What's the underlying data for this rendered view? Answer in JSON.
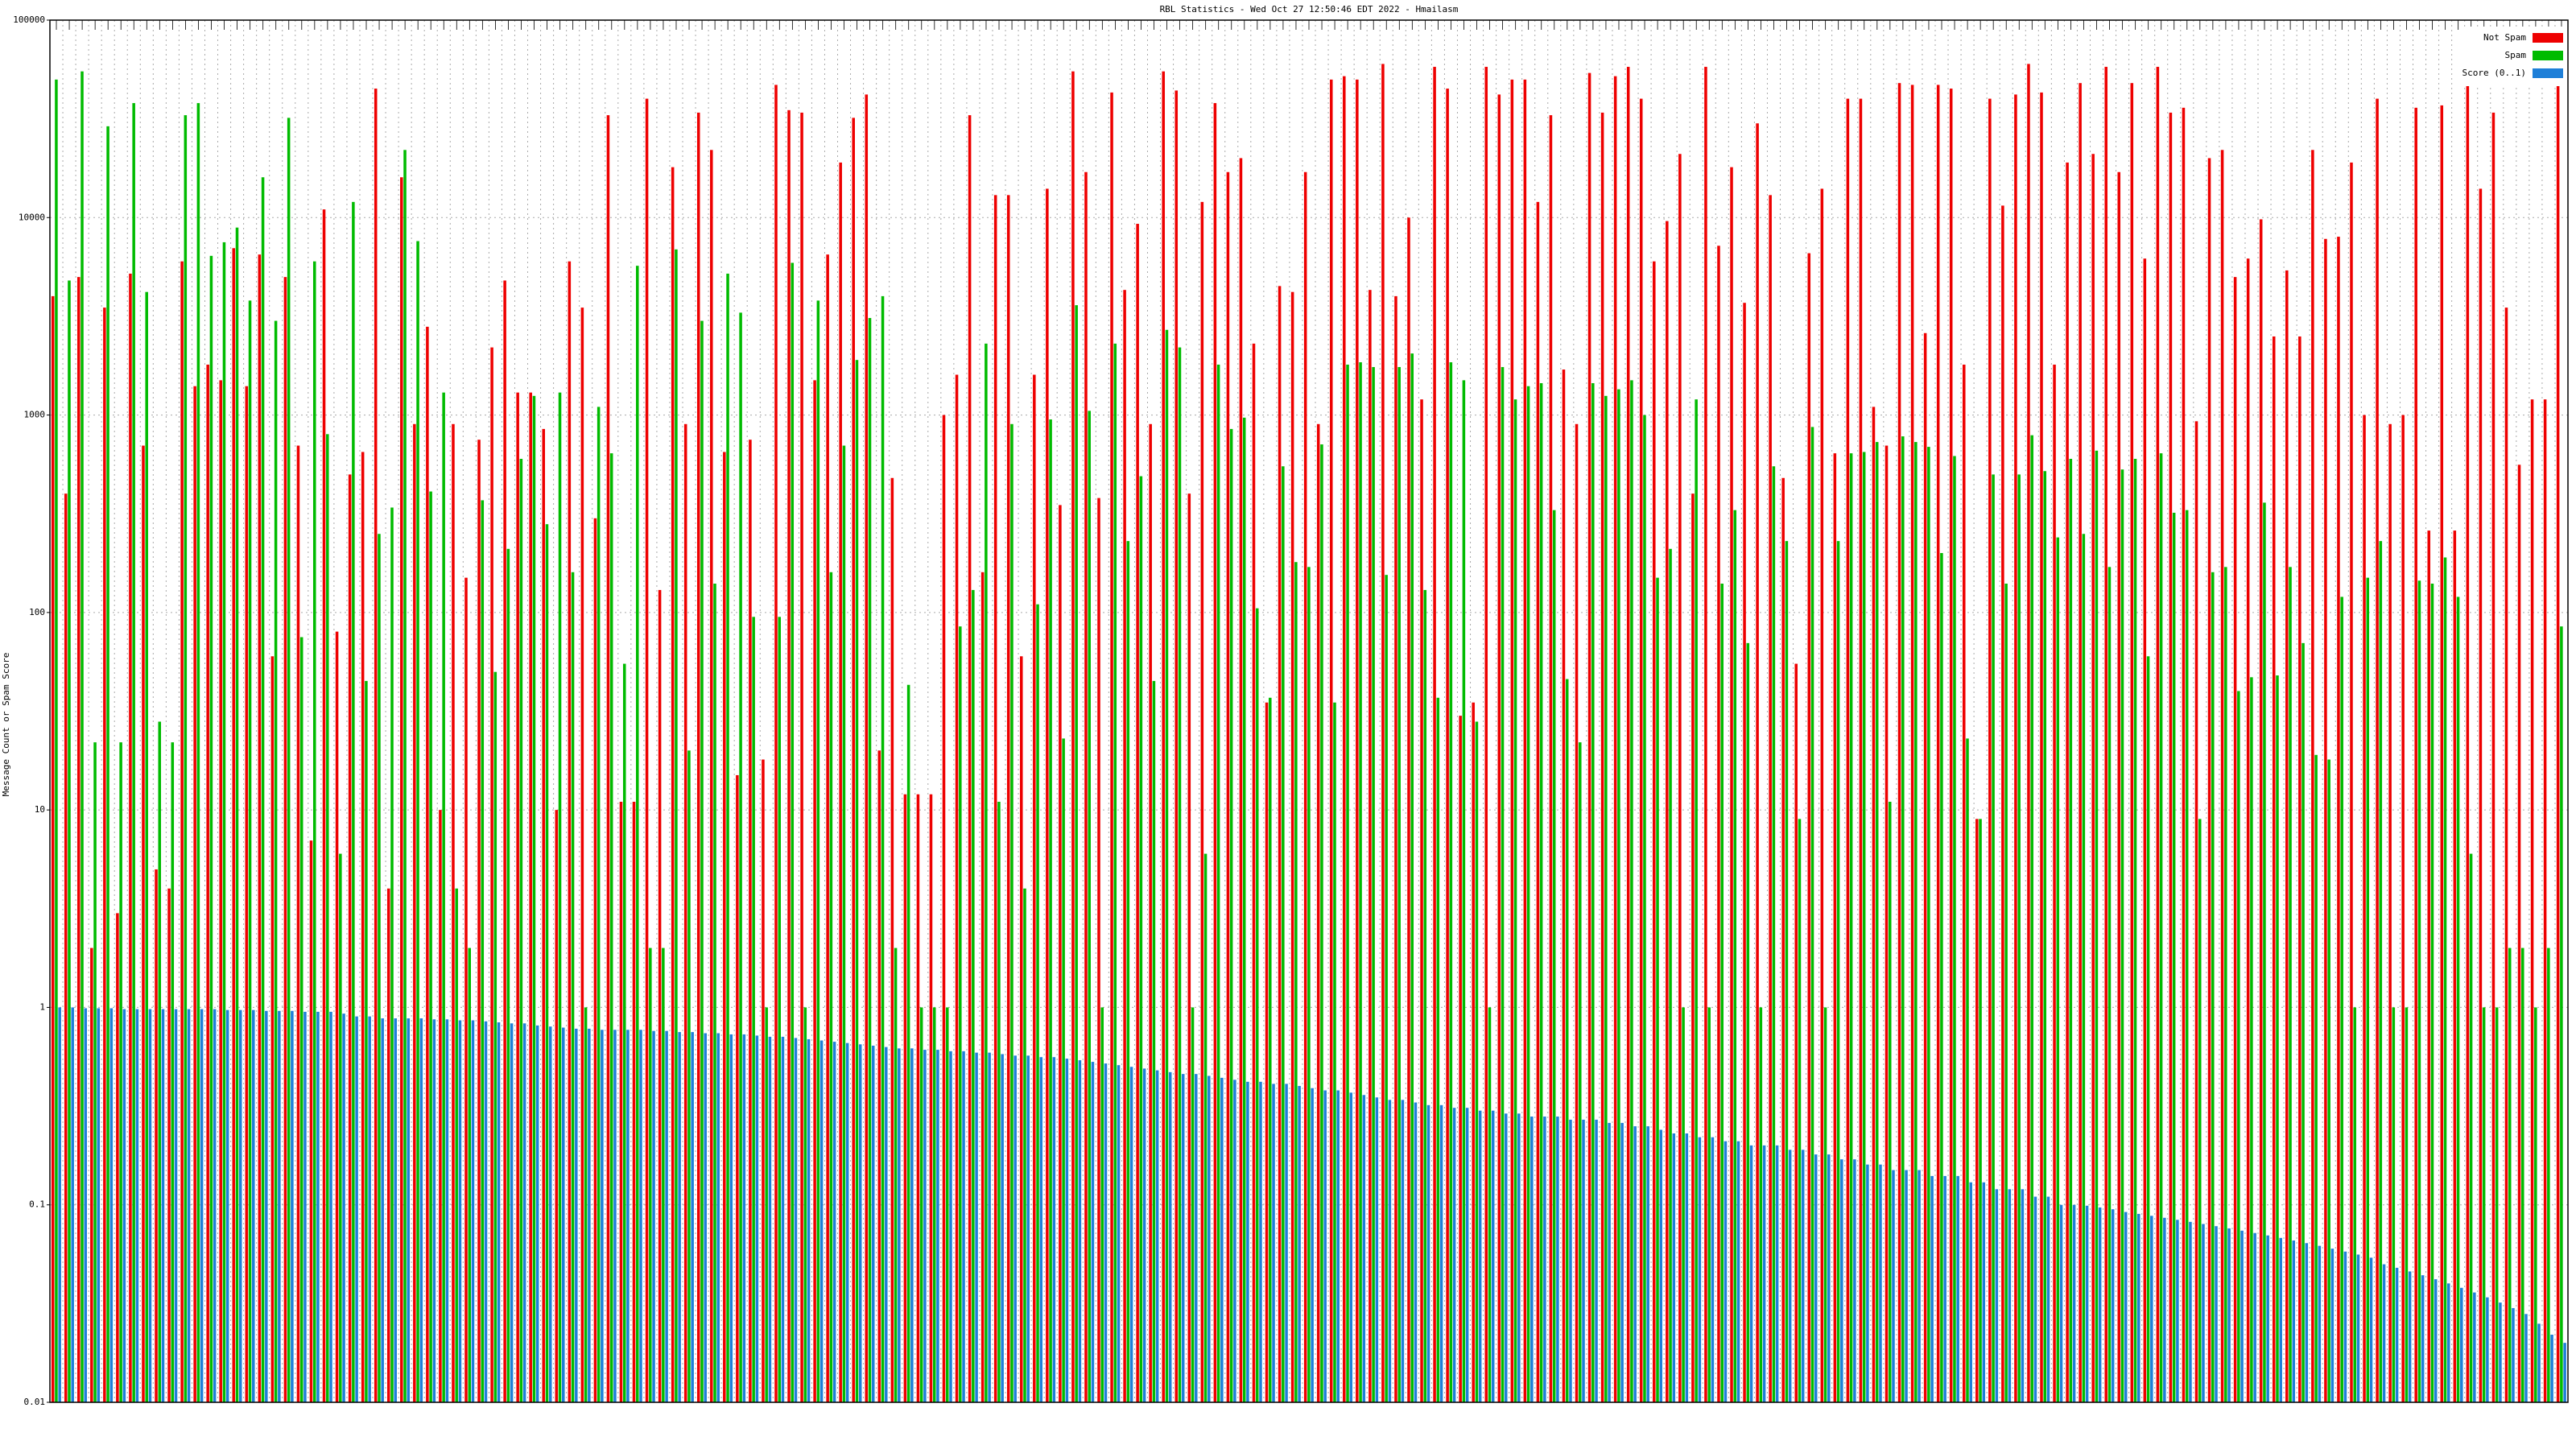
{
  "chart_data": {
    "type": "bar",
    "title": "RBL Statistics - Wed Oct 27 12:50:46 EDT 2022 - Hmailasm",
    "y_label": "Message Count or Spam Score",
    "log_scale": true,
    "grid": true,
    "legend": "top-right",
    "ylim": [
      0.01,
      100000
    ],
    "yticks": [
      0.01,
      0.1,
      1,
      10,
      100,
      1000,
      10000,
      100000
    ],
    "categories": [
      null,
      null,
      null,
      null,
      null,
      null,
      null,
      null,
      null,
      null,
      null,
      null,
      null,
      null,
      null,
      null,
      null,
      null,
      null,
      null,
      null,
      null,
      null,
      null,
      null,
      null,
      null,
      null,
      null,
      null,
      null,
      null,
      null,
      null,
      null,
      null,
      null,
      null,
      null,
      null,
      null,
      null,
      null,
      null,
      null,
      null,
      null,
      null,
      null,
      null,
      null,
      null,
      null,
      null,
      null,
      null,
      null,
      null,
      null,
      null,
      null,
      null,
      null,
      null,
      null,
      null,
      null,
      null,
      null,
      null,
      null,
      null,
      null,
      null,
      null,
      null,
      null,
      null,
      null,
      null,
      null,
      null,
      null,
      null,
      null,
      null,
      null,
      null,
      null,
      null,
      null,
      null,
      null,
      null,
      null,
      null,
      null,
      null,
      null,
      null,
      null,
      null,
      null,
      null,
      null,
      null,
      null,
      null,
      null,
      null,
      null,
      null,
      null,
      null,
      null,
      null,
      null,
      null,
      null,
      null,
      null,
      null,
      null,
      null,
      null,
      null,
      null,
      null,
      null,
      null,
      null,
      null,
      null,
      null,
      null,
      null,
      null,
      null,
      null,
      null,
      null,
      null,
      null,
      null,
      null,
      null,
      null,
      null,
      null,
      null,
      null,
      null,
      null,
      null,
      null,
      null,
      null,
      null,
      null,
      null,
      null,
      null,
      null,
      null,
      null,
      null,
      null,
      null,
      null,
      null,
      null,
      null,
      null,
      null,
      null,
      null,
      null,
      null,
      null,
      null,
      null,
      null,
      null,
      null,
      null,
      null,
      null,
      null,
      null,
      null,
      null,
      null,
      null,
      null,
      null
    ],
    "series": [
      {
        "name": "Not Spam",
        "color": "#ee0000",
        "values": [
          4000,
          400,
          5000,
          2,
          3500,
          3,
          5200,
          700,
          5,
          4,
          6000,
          1400,
          1800,
          1500,
          7000,
          1400,
          6500,
          60,
          5000,
          700,
          7,
          11000,
          80,
          500,
          650,
          45000,
          4,
          16000,
          900,
          2800,
          10,
          900,
          150,
          750,
          2200,
          4800,
          1300,
          1300,
          850,
          10,
          6000,
          3500,
          300,
          33000,
          11,
          11,
          40000,
          130,
          18000,
          900,
          34000,
          22000,
          650,
          15,
          750,
          18,
          47000,
          35000,
          34000,
          1500,
          6500,
          19000,
          32000,
          42000,
          20,
          480,
          12,
          12,
          12,
          1000,
          1600,
          33000,
          160,
          13000,
          13000,
          60,
          1600,
          14000,
          350,
          55000,
          17000,
          380,
          43000,
          4300,
          9300,
          900,
          55000,
          44000,
          400,
          12000,
          38000,
          17000,
          20000,
          2300,
          35,
          4500,
          4200,
          17000,
          900,
          50000,
          52000,
          50000,
          4300,
          60000,
          4000,
          10000,
          1200,
          58000,
          45000,
          30,
          35,
          58000,
          42000,
          50000,
          50000,
          12000,
          33000,
          1700,
          900,
          54000,
          34000,
          52000,
          58000,
          40000,
          6000,
          9600,
          21000,
          400,
          58000,
          7200,
          18000,
          3700,
          30000,
          13000,
          480,
          55,
          6600,
          14000,
          640,
          40000,
          40000,
          1100,
          700,
          48000,
          47000,
          2600,
          47000,
          45000,
          1800,
          9,
          40000,
          11500,
          42000,
          60000,
          43000,
          1800,
          19000,
          48000,
          21000,
          58000,
          17000,
          48000,
          6200,
          58000,
          34000,
          36000,
          930,
          20000,
          22000,
          5000,
          6200,
          9800,
          2500,
          5400,
          2500,
          22000,
          7800,
          8000,
          19000,
          1000,
          40000,
          900,
          1000,
          36000,
          260,
          37000,
          260,
          55000,
          14000,
          34000,
          3500,
          560,
          1200,
          1200,
          58000
        ]
      },
      {
        "name": "Spam",
        "color": "#00bb00",
        "values": [
          50000,
          4800,
          55000,
          22,
          29000,
          22,
          38000,
          4200,
          28,
          22,
          33000,
          38000,
          6400,
          7500,
          8900,
          3800,
          16000,
          3000,
          32000,
          75,
          6000,
          800,
          6,
          12000,
          45,
          250,
          340,
          22000,
          7600,
          410,
          1300,
          4,
          2,
          370,
          50,
          210,
          600,
          1250,
          280,
          1300,
          160,
          1,
          1100,
          640,
          55,
          5700,
          2,
          2,
          6900,
          20,
          3000,
          140,
          5200,
          3300,
          95,
          1,
          95,
          5900,
          1,
          3800,
          160,
          700,
          1900,
          3100,
          4000,
          2,
          43,
          1,
          1,
          1,
          85,
          130,
          2300,
          11,
          900,
          4,
          110,
          950,
          23,
          3600,
          1050,
          1,
          2300,
          230,
          490,
          45,
          2700,
          2200,
          1,
          6,
          1800,
          850,
          970,
          105,
          37,
          550,
          180,
          170,
          710,
          35,
          1800,
          1850,
          1750,
          155,
          1750,
          2050,
          130,
          37,
          1850,
          1500,
          28,
          1,
          1750,
          1200,
          1400,
          1450,
          330,
          46,
          22,
          1450,
          1250,
          1350,
          1500,
          1000,
          150,
          210,
          1,
          1200,
          1,
          140,
          330,
          70,
          1,
          550,
          230,
          9,
          870,
          1,
          230,
          640,
          650,
          730,
          11,
          780,
          730,
          690,
          200,
          620,
          23,
          9,
          500,
          140,
          500,
          790,
          520,
          240,
          600,
          250,
          660,
          170,
          530,
          600,
          60,
          640,
          320,
          330,
          9,
          160,
          170,
          40,
          47,
          360,
          48,
          170,
          70,
          19,
          18,
          120,
          1,
          150,
          230,
          1,
          1,
          145,
          140,
          190,
          120,
          6,
          1,
          1,
          2,
          2,
          1,
          2,
          85
        ]
      },
      {
        "name": "Score (0..1)",
        "color": "#1e7fd8",
        "values": [
          1,
          1,
          0.99,
          0.99,
          0.99,
          0.98,
          0.98,
          0.98,
          0.98,
          0.98,
          0.98,
          0.98,
          0.98,
          0.97,
          0.97,
          0.97,
          0.96,
          0.96,
          0.96,
          0.95,
          0.95,
          0.95,
          0.93,
          0.9,
          0.9,
          0.88,
          0.88,
          0.88,
          0.88,
          0.87,
          0.87,
          0.86,
          0.86,
          0.85,
          0.84,
          0.83,
          0.83,
          0.81,
          0.8,
          0.79,
          0.78,
          0.78,
          0.77,
          0.77,
          0.77,
          0.77,
          0.76,
          0.76,
          0.75,
          0.75,
          0.74,
          0.74,
          0.73,
          0.73,
          0.72,
          0.71,
          0.71,
          0.7,
          0.69,
          0.68,
          0.67,
          0.66,
          0.65,
          0.64,
          0.63,
          0.62,
          0.62,
          0.61,
          0.61,
          0.6,
          0.6,
          0.59,
          0.59,
          0.58,
          0.57,
          0.57,
          0.56,
          0.56,
          0.55,
          0.54,
          0.53,
          0.52,
          0.51,
          0.5,
          0.49,
          0.48,
          0.47,
          0.46,
          0.46,
          0.45,
          0.44,
          0.43,
          0.42,
          0.42,
          0.41,
          0.41,
          0.4,
          0.39,
          0.38,
          0.38,
          0.37,
          0.36,
          0.35,
          0.34,
          0.34,
          0.33,
          0.32,
          0.32,
          0.31,
          0.31,
          0.3,
          0.3,
          0.29,
          0.29,
          0.28,
          0.28,
          0.28,
          0.27,
          0.27,
          0.27,
          0.26,
          0.26,
          0.25,
          0.25,
          0.24,
          0.23,
          0.23,
          0.22,
          0.22,
          0.21,
          0.21,
          0.2,
          0.2,
          0.2,
          0.19,
          0.19,
          0.18,
          0.18,
          0.17,
          0.17,
          0.16,
          0.16,
          0.15,
          0.15,
          0.15,
          0.14,
          0.14,
          0.14,
          0.13,
          0.13,
          0.12,
          0.12,
          0.12,
          0.11,
          0.11,
          0.1,
          0.1,
          0.099,
          0.097,
          0.095,
          0.092,
          0.09,
          0.088,
          0.086,
          0.084,
          0.082,
          0.08,
          0.078,
          0.076,
          0.074,
          0.072,
          0.07,
          0.068,
          0.066,
          0.064,
          0.062,
          0.06,
          0.058,
          0.056,
          0.054,
          0.05,
          0.048,
          0.046,
          0.044,
          0.042,
          0.04,
          0.038,
          0.036,
          0.034,
          0.032,
          0.03,
          0.028,
          0.025,
          0.022,
          0.02
        ]
      }
    ]
  }
}
